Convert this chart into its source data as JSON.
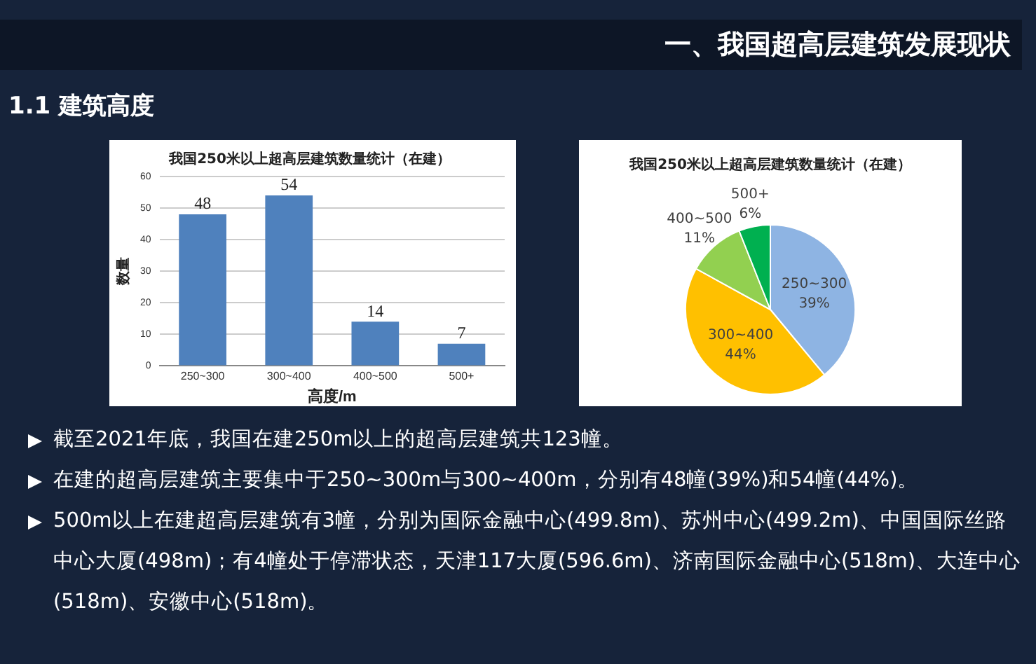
{
  "chart_data": [
    {
      "type": "other",
      "title": "一、我国超高层建筑发展现状",
      "subtitle": "1.1  建筑高度"
    },
    {
      "type": "bar",
      "title": "我国250米以上超高层建筑数量统计（在建）",
      "categories": [
        "250~300",
        "300~400",
        "400~500",
        "500+"
      ],
      "values": [
        48,
        54,
        14,
        7
      ],
      "color": "#4f81bd",
      "ylim": [
        0,
        60
      ],
      "yticks": [
        0,
        10,
        20,
        30,
        40,
        50,
        60
      ],
      "grid": "y",
      "xlabel": "高度/m",
      "ylabel": "数量",
      "data_labels": true,
      "legend": false
    },
    {
      "type": "pie",
      "title": "我国250米以上超高层建筑数量统计（在建）",
      "categories": [
        "250~300",
        "300~400",
        "400~500",
        "500+"
      ],
      "values": [
        39,
        44,
        11,
        6
      ],
      "value_labels": [
        "39%",
        "44%",
        "11%",
        "6%"
      ],
      "colors": [
        "#8eb4e3",
        "#ffc000",
        "#92d050",
        "#00b050"
      ],
      "legend": false
    },
    {
      "type": "other",
      "annotations": [
        "截至2021年底，我国在建250m以上的超高层建筑共123幢。",
        "在建的超高层建筑主要集中于250~300m与300~400m，分别有48幢(39%)和54幢(44%)。",
        "500m以上在建超高层建筑有3幢，分别为国际金融中心(499.8m)、苏州中心(499.2m)、中国国际丝路中心大厦(498m)；有4幢处于停滞状态，天津117大厦(596.6m)、济南国际金融中心(518m)、大连中心(518m)、安徽中心(518m)。"
      ]
    }
  ]
}
